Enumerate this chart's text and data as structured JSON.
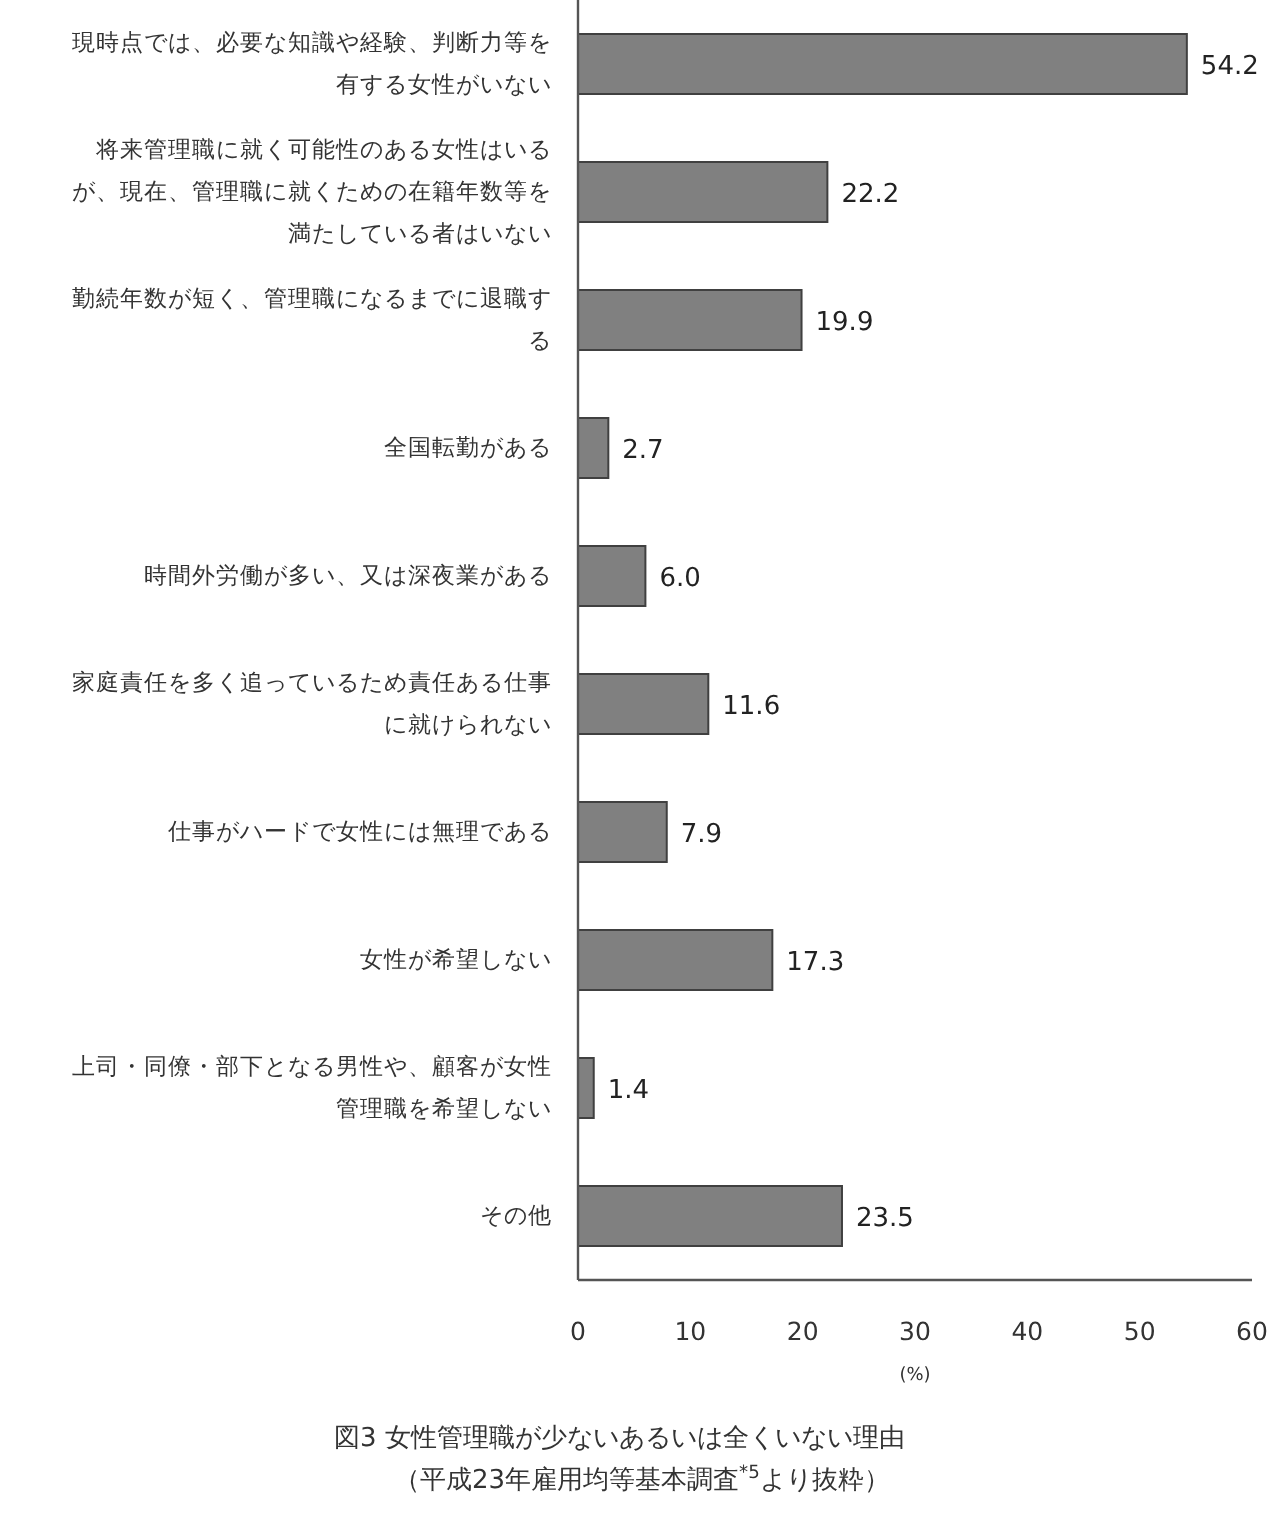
{
  "chart_data": {
    "type": "bar",
    "orientation": "horizontal",
    "title": "図3 女性管理職が少ないあるいは全くいない理由",
    "subtitle": "（平成23年雇用均等基本調査$^{*5}$より抜粋）",
    "xlabel": "(%)",
    "categories": [
      "現時点では、必要な知識や経験、判断力等を有する女性がいない",
      "将来管理職に就く可能性のある女性はいるが、現在、管理職に就くための在籍年数等を満たしている者はいない",
      "勤続年数が短く、管理職になるまでに退職する",
      "全国転勤がある",
      "時間外労働が多い、又は深夜業がある",
      "家庭責任を多く追っているため責任ある仕事に就けられない",
      "仕事がハードで女性には無理である",
      "女性が希望しない",
      "上司・同僚・部下となる男性や、顧客が女性管理職を希望しない",
      "その他"
    ],
    "values": [
      54.2,
      22.2,
      19.9,
      2.7,
      6.0,
      11.6,
      7.9,
      17.3,
      1.4,
      23.5
    ],
    "value_labels": [
      "54.2",
      "22.2",
      "19.9",
      "2.7",
      "6.0",
      "11.6",
      "7.9",
      "17.3",
      "1.4",
      "23.5"
    ],
    "color": "#808080",
    "xlim": [
      0,
      60
    ],
    "xticks": [
      0,
      10,
      20,
      30,
      40,
      50,
      60
    ],
    "grid": false
  }
}
